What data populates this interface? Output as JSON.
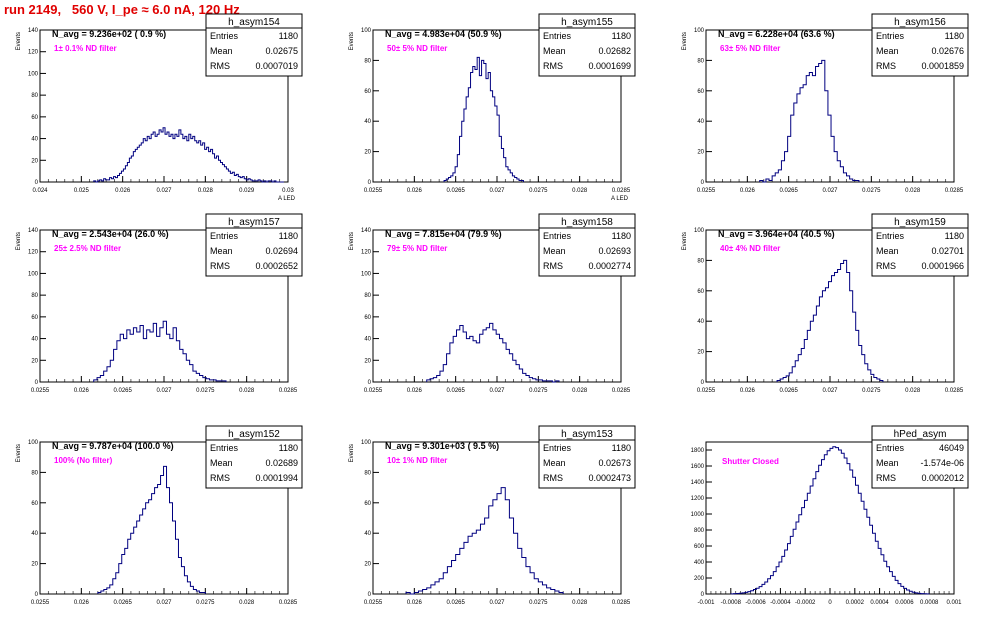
{
  "title": "run 2149,   560 V, I_pe ≈ 6.0 nA, 120 Hz",
  "colors": {
    "title": "#e00000",
    "histogram": "#000080",
    "filter_label": "#ff00ff",
    "axis": "#000000"
  },
  "chart_data": [
    {
      "type": "histogram",
      "name": "h_asym154",
      "nlabel": "N_avg = 9.236e+02 ( 0.9 %)",
      "filter": "1± 0.1% ND filter",
      "stats": [
        [
          "Entries",
          "1180"
        ],
        [
          "Mean",
          "0.02675"
        ],
        [
          "RMS",
          "0.0007019"
        ]
      ],
      "xlabel": "A_LED",
      "ylabel": "Events",
      "xlim": [
        0.024,
        0.03
      ],
      "ylim": [
        0,
        140
      ],
      "xticks": [
        "0.024",
        "0.025",
        "0.026",
        "0.027",
        "0.028",
        "0.029",
        "0.03"
      ],
      "yticks": [
        "0",
        "20",
        "40",
        "60",
        "80",
        "100",
        "120",
        "140"
      ],
      "bin_edges": [
        0.0253,
        0.0299
      ],
      "values": [
        1,
        0,
        1,
        2,
        1,
        3,
        2,
        2,
        4,
        3,
        5,
        4,
        6,
        8,
        10,
        12,
        15,
        18,
        22,
        24,
        28,
        30,
        32,
        34,
        36,
        40,
        38,
        42,
        40,
        44,
        46,
        42,
        44,
        48,
        46,
        50,
        44,
        46,
        42,
        44,
        40,
        44,
        42,
        48,
        44,
        40,
        42,
        38,
        44,
        40,
        42,
        38,
        36,
        38,
        34,
        36,
        30,
        32,
        28,
        30,
        26,
        22,
        24,
        20,
        18,
        16,
        14,
        12,
        10,
        8,
        9,
        6,
        7,
        5,
        4,
        5,
        3,
        2,
        3,
        2,
        1,
        1,
        1,
        2,
        1,
        0,
        1,
        0,
        1,
        1,
        0,
        1,
        0,
        0,
        0,
        0
      ],
      "stats_rows_y": [
        32,
        47,
        62
      ]
    },
    {
      "type": "histogram",
      "name": "h_asym155",
      "nlabel": "N_avg = 4.983e+04 (50.9 %)",
      "filter": "50± 5% ND filter",
      "stats": [
        [
          "Entries",
          "1180"
        ],
        [
          "Mean",
          "0.02682"
        ],
        [
          "RMS",
          "0.0001699"
        ]
      ],
      "xlabel": "A_LED",
      "ylabel": "Events",
      "xlim": [
        0.0255,
        0.0285
      ],
      "ylim": [
        0,
        100
      ],
      "xticks": [
        "0.0255",
        "0.026",
        "0.0265",
        "0.027",
        "0.0275",
        "0.028",
        "0.0285"
      ],
      "yticks": [
        "0",
        "20",
        "40",
        "60",
        "80",
        "100"
      ],
      "bin_edges": [
        0.02636,
        0.02732
      ],
      "values": [
        1,
        2,
        3,
        4,
        6,
        10,
        18,
        30,
        40,
        48,
        56,
        62,
        72,
        76,
        74,
        82,
        70,
        80,
        78,
        68,
        72,
        60,
        56,
        50,
        44,
        30,
        22,
        16,
        10,
        8,
        6,
        4,
        3,
        2,
        1,
        1
      ],
      "stats_rows_y": [
        32,
        47,
        62
      ]
    },
    {
      "type": "histogram",
      "name": "h_asym156",
      "nlabel": "N_avg = 6.228e+04 (63.6 %)",
      "filter": "63± 5% ND filter",
      "stats": [
        [
          "Entries",
          "1180"
        ],
        [
          "Mean",
          "0.02676"
        ],
        [
          "RMS",
          "0.0001859"
        ]
      ],
      "xlabel": "",
      "ylabel": "Events",
      "xlim": [
        0.0255,
        0.0285
      ],
      "ylim": [
        0,
        100
      ],
      "xticks": [
        "0.0255",
        "0.026",
        "0.0265",
        "0.027",
        "0.0275",
        "0.028",
        "0.0285"
      ],
      "yticks": [
        "0",
        "20",
        "40",
        "60",
        "80",
        "100"
      ],
      "bin_edges": [
        0.02615,
        0.02735
      ],
      "values": [
        1,
        0,
        2,
        1,
        4,
        6,
        8,
        14,
        20,
        30,
        44,
        52,
        58,
        62,
        64,
        70,
        72,
        70,
        76,
        78,
        80,
        60,
        44,
        30,
        20,
        14,
        10,
        6,
        4,
        2,
        1,
        1
      ],
      "stats_rows_y": [
        32,
        47,
        62
      ]
    },
    {
      "type": "histogram",
      "name": "h_asym157",
      "nlabel": "N_avg = 2.543e+04 (26.0 %)",
      "filter": "25± 2.5% ND filter",
      "stats": [
        [
          "Entries",
          "1180"
        ],
        [
          "Mean",
          "0.02694"
        ],
        [
          "RMS",
          "0.0002652"
        ]
      ],
      "xlabel": "",
      "ylabel": "Events",
      "xlim": [
        0.0255,
        0.0285
      ],
      "ylim": [
        0,
        140
      ],
      "xticks": [
        "0.0255",
        "0.026",
        "0.0265",
        "0.027",
        "0.0275",
        "0.028",
        "0.0285"
      ],
      "yticks": [
        "0",
        "20",
        "40",
        "60",
        "80",
        "100",
        "120",
        "140"
      ],
      "bin_edges": [
        0.02615,
        0.02775
      ],
      "values": [
        2,
        4,
        6,
        10,
        14,
        20,
        30,
        38,
        44,
        40,
        48,
        44,
        50,
        46,
        52,
        40,
        48,
        46,
        54,
        42,
        50,
        56,
        44,
        40,
        50,
        38,
        30,
        26,
        20,
        16,
        10,
        8,
        6,
        4,
        3,
        2,
        2,
        1,
        1,
        1
      ],
      "stats_rows_y": [
        32,
        47,
        62
      ]
    },
    {
      "type": "histogram",
      "name": "h_asym158",
      "nlabel": "N_avg = 7.815e+04 (79.9 %)",
      "filter": "79± 5% ND filter",
      "stats": [
        [
          "Entries",
          "1180"
        ],
        [
          "Mean",
          "0.02693"
        ],
        [
          "RMS",
          "0.0002774"
        ]
      ],
      "xlabel": "",
      "ylabel": "Events",
      "xlim": [
        0.0255,
        0.0285
      ],
      "ylim": [
        0,
        140
      ],
      "xticks": [
        "0.0255",
        "0.026",
        "0.0265",
        "0.027",
        "0.0275",
        "0.028",
        "0.0285"
      ],
      "yticks": [
        "0",
        "20",
        "40",
        "60",
        "80",
        "100",
        "120",
        "140"
      ],
      "bin_edges": [
        0.02615,
        0.02775
      ],
      "values": [
        2,
        3,
        4,
        6,
        10,
        16,
        26,
        36,
        42,
        48,
        52,
        46,
        40,
        42,
        38,
        36,
        44,
        48,
        50,
        54,
        48,
        44,
        40,
        36,
        30,
        26,
        20,
        16,
        12,
        8,
        6,
        4,
        3,
        2,
        2,
        1,
        1,
        1,
        0,
        1
      ],
      "stats_rows_y": [
        32,
        47,
        62
      ]
    },
    {
      "type": "histogram",
      "name": "h_asym159",
      "nlabel": "N_avg = 3.964e+04 (40.5 %)",
      "filter": "40± 4% ND filter",
      "stats": [
        [
          "Entries",
          "1180"
        ],
        [
          "Mean",
          "0.02701"
        ],
        [
          "RMS",
          "0.0001966"
        ]
      ],
      "xlabel": "",
      "ylabel": "Events",
      "xlim": [
        0.0255,
        0.0285
      ],
      "ylim": [
        0,
        100
      ],
      "xticks": [
        "0.0255",
        "0.026",
        "0.0265",
        "0.027",
        "0.0275",
        "0.028",
        "0.0285"
      ],
      "yticks": [
        "0",
        "20",
        "40",
        "60",
        "80",
        "100"
      ],
      "bin_edges": [
        0.02636,
        0.02764
      ],
      "values": [
        1,
        2,
        3,
        4,
        6,
        10,
        14,
        18,
        22,
        28,
        34,
        40,
        44,
        50,
        56,
        60,
        62,
        66,
        70,
        72,
        74,
        78,
        80,
        72,
        60,
        46,
        34,
        24,
        18,
        12,
        8,
        5,
        3,
        2,
        1
      ],
      "stats_rows_y": [
        32,
        47,
        62
      ]
    },
    {
      "type": "histogram",
      "name": "h_asym152",
      "nlabel": "N_avg = 9.787e+04 (100.0 %)",
      "filter": "100% (No filter)",
      "stats": [
        [
          "Entries",
          "1180"
        ],
        [
          "Mean",
          "0.02689"
        ],
        [
          "RMS",
          "0.0001994"
        ]
      ],
      "xlabel": "",
      "ylabel": "Events",
      "xlim": [
        0.0255,
        0.0285
      ],
      "ylim": [
        0,
        100
      ],
      "xticks": [
        "0.0255",
        "0.026",
        "0.0265",
        "0.027",
        "0.0275",
        "0.028",
        "0.0285"
      ],
      "yticks": [
        "0",
        "20",
        "40",
        "60",
        "80",
        "100"
      ],
      "bin_edges": [
        0.0262,
        0.0275
      ],
      "values": [
        1,
        2,
        3,
        4,
        6,
        10,
        14,
        20,
        26,
        30,
        36,
        40,
        44,
        48,
        52,
        56,
        60,
        62,
        66,
        70,
        72,
        78,
        84,
        70,
        60,
        48,
        36,
        24,
        18,
        12,
        8,
        5,
        3,
        2,
        1,
        1
      ],
      "stats_rows_y": [
        32,
        47,
        62
      ]
    },
    {
      "type": "histogram",
      "name": "h_asym153",
      "nlabel": "N_avg = 9.301e+03 ( 9.5 %)",
      "filter": "10± 1% ND filter",
      "stats": [
        [
          "Entries",
          "1180"
        ],
        [
          "Mean",
          "0.02673"
        ],
        [
          "RMS",
          "0.0002473"
        ]
      ],
      "xlabel": "",
      "ylabel": "Events",
      "xlim": [
        0.0255,
        0.0285
      ],
      "ylim": [
        0,
        100
      ],
      "xticks": [
        "0.0255",
        "0.026",
        "0.0265",
        "0.027",
        "0.0275",
        "0.028",
        "0.0285"
      ],
      "yticks": [
        "0",
        "20",
        "40",
        "60",
        "80",
        "100"
      ],
      "bin_edges": [
        0.0259,
        0.0278
      ],
      "values": [
        1,
        0,
        1,
        2,
        3,
        4,
        6,
        8,
        10,
        14,
        18,
        22,
        26,
        30,
        34,
        38,
        40,
        42,
        46,
        50,
        58,
        62,
        66,
        70,
        62,
        50,
        40,
        30,
        24,
        18,
        14,
        10,
        8,
        6,
        4,
        3,
        2,
        1
      ],
      "stats_rows_y": [
        32,
        47,
        62
      ]
    },
    {
      "type": "histogram",
      "name": "hPed_asym",
      "nlabel": "",
      "filter": "Shutter Closed",
      "stats": [
        [
          "Entries",
          "46049"
        ],
        [
          "Mean",
          "-1.574e-06"
        ],
        [
          "RMS",
          "0.0002012"
        ]
      ],
      "xlabel": "",
      "ylabel": "",
      "xlim": [
        -0.001,
        0.001
      ],
      "ylim": [
        0,
        1900
      ],
      "xticks": [
        "-0.001",
        "-0.0008",
        "-0.0006",
        "-0.0004",
        "-0.0002",
        "0",
        "0.0002",
        "0.0004",
        "0.0006",
        "0.0008",
        "0.001"
      ],
      "yticks": [
        "0",
        "200",
        "400",
        "600",
        "800",
        "1000",
        "1200",
        "1400",
        "1600",
        "1800"
      ],
      "bin_edges": [
        -0.0008,
        0.0008
      ],
      "values": [
        2,
        4,
        6,
        10,
        14,
        20,
        30,
        40,
        56,
        72,
        92,
        120,
        150,
        190,
        230,
        280,
        340,
        400,
        470,
        550,
        630,
        720,
        810,
        900,
        990,
        1080,
        1170,
        1260,
        1350,
        1440,
        1530,
        1610,
        1680,
        1740,
        1790,
        1820,
        1840,
        1830,
        1800,
        1760,
        1700,
        1630,
        1550,
        1460,
        1360,
        1260,
        1160,
        1060,
        960,
        860,
        760,
        660,
        570,
        490,
        410,
        340,
        280,
        220,
        170,
        130,
        96,
        70,
        50,
        34,
        22,
        14,
        8,
        5,
        3,
        2
      ],
      "stats_rows_y": [
        32,
        47,
        62
      ]
    }
  ]
}
